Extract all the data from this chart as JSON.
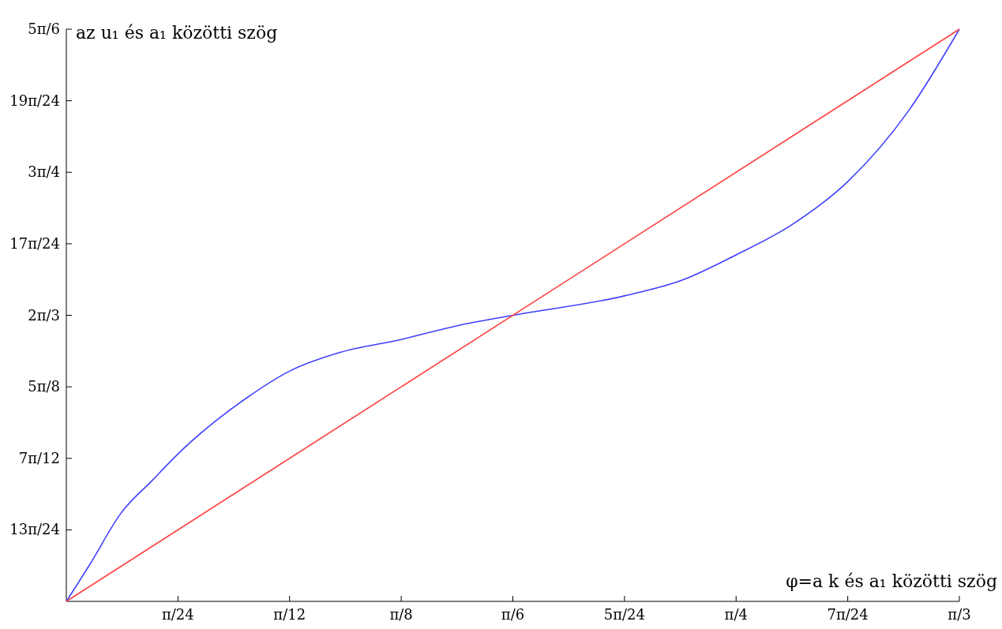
{
  "chart_data": {
    "type": "line",
    "xlabel": "φ=a k és a₁ közötti szög",
    "ylabel": "az u₁ és a₁ közötti szög",
    "xlim": [
      0,
      1.0472
    ],
    "ylim": [
      1.5708,
      2.618
    ],
    "xticks": [
      {
        "value": 0.1309,
        "label": "π/24"
      },
      {
        "value": 0.2618,
        "label": "π/12"
      },
      {
        "value": 0.3927,
        "label": "π/8"
      },
      {
        "value": 0.5236,
        "label": "π/6"
      },
      {
        "value": 0.6545,
        "label": "5π/24"
      },
      {
        "value": 0.7854,
        "label": "π/4"
      },
      {
        "value": 0.9163,
        "label": "7π/24"
      },
      {
        "value": 1.0472,
        "label": "π/3"
      }
    ],
    "yticks": [
      {
        "value": 1.7017,
        "label": "13π/24"
      },
      {
        "value": 1.8326,
        "label": "7π/12"
      },
      {
        "value": 1.9635,
        "label": "5π/8"
      },
      {
        "value": 2.0944,
        "label": "2π/3"
      },
      {
        "value": 2.2253,
        "label": "17π/24"
      },
      {
        "value": 2.3562,
        "label": "3π/4"
      },
      {
        "value": 2.4871,
        "label": "19π/24"
      },
      {
        "value": 2.618,
        "label": "5π/6"
      }
    ],
    "grid": false,
    "marker": "none",
    "line_style": "solid",
    "series": [
      {
        "color": "#4040ff",
        "x": [
          0,
          0.0274,
          0.064,
          0.1006,
          0.1372,
          0.2104,
          0.2616,
          0.3201,
          0.3924,
          0.4573,
          0.5236,
          0.6545,
          0.7225,
          0.7854,
          0.8506,
          0.9163,
          0.9878,
          1.0472
        ],
        "values": [
          1.5708,
          1.638,
          1.732,
          1.792,
          1.85,
          1.942,
          1.992,
          2.026,
          2.05,
          2.075,
          2.0944,
          2.13,
          2.159,
          2.205,
          2.26,
          2.339,
          2.469,
          2.618
        ]
      },
      {
        "color": "#ff4040",
        "x": [
          0,
          1.0472
        ],
        "values": [
          1.5708,
          2.618
        ]
      }
    ]
  }
}
